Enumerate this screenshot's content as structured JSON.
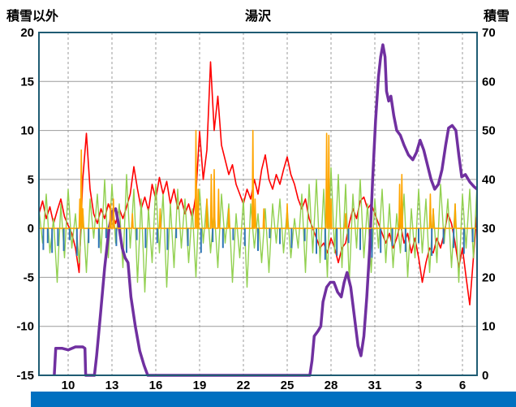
{
  "header": {
    "left_axis_title": "積雪以外",
    "title": "湯沢",
    "right_axis_title": "積雪"
  },
  "chart_data": {
    "type": "line",
    "title": "湯沢",
    "legend": "none",
    "grid": {
      "horizontal": "solid-gray",
      "vertical": "dashed-gray"
    },
    "left_axis": {
      "label": "積雪以外",
      "min": -15,
      "max": 20,
      "ticks": [
        20,
        15,
        10,
        5,
        0,
        -5,
        -10,
        -15
      ]
    },
    "right_axis": {
      "label": "積雪",
      "min": 0,
      "max": 70,
      "ticks": [
        70,
        60,
        50,
        40,
        30,
        20,
        10,
        0
      ]
    },
    "x_axis": {
      "domain": [
        0,
        30
      ],
      "tick_positions": [
        2,
        5,
        8,
        11,
        14,
        17,
        20,
        23,
        26,
        29
      ],
      "tick_labels": [
        "10",
        "13",
        "16",
        "19",
        "22",
        "25",
        "28",
        "31",
        "3",
        "6"
      ]
    },
    "colors": {
      "red_series": "#FF0000",
      "green_series": "#92D050",
      "purple_series": "#7030A0",
      "orange_series": "#FFA500",
      "blue_series": "#2E75B6",
      "border": "#1F5C73",
      "gridline": "#9B9B9B",
      "bottom_bar": "#0070C0"
    },
    "series": [
      {
        "name": "red-line",
        "axis": "left",
        "color": "#FF0000",
        "kind": "grid-line",
        "x_start": 0,
        "x_step": 0.25,
        "values": [
          1.5,
          2.8,
          1.0,
          2.2,
          0.5,
          1.8,
          3.0,
          1.2,
          0.3,
          -0.5,
          -2.0,
          -4.5,
          5.0,
          9.7,
          4.0,
          1.5,
          0.5,
          2.0,
          1.0,
          2.5,
          1.5,
          0.5,
          2.0,
          1.0,
          2.2,
          3.5,
          6.3,
          4.0,
          2.0,
          3.2,
          1.8,
          4.5,
          3.0,
          5.2,
          3.5,
          4.8,
          2.5,
          4.0,
          2.0,
          3.0,
          1.5,
          2.5,
          1.0,
          3.5,
          9.9,
          5.0,
          8.0,
          17.0,
          10.0,
          13.5,
          8.5,
          7.0,
          5.5,
          6.5,
          4.5,
          3.5,
          2.5,
          4.0,
          3.0,
          5.0,
          3.5,
          6.0,
          7.5,
          5.0,
          4.0,
          5.5,
          4.5,
          6.0,
          7.3,
          5.5,
          4.5,
          3.0,
          2.0,
          3.0,
          1.0,
          0.0,
          -1.0,
          -2.0,
          -1.5,
          -2.5,
          -1.0,
          -2.0,
          -3.5,
          -2.0,
          -1.5,
          0.5,
          2.0,
          1.0,
          2.8,
          3.2,
          2.0,
          2.5,
          1.5,
          0.5,
          -0.5,
          -1.5,
          -0.5,
          -2.0,
          -1.0,
          0.5,
          -1.5,
          -0.5,
          -2.5,
          -1.0,
          -3.0,
          -5.5,
          -3.5,
          -2.0,
          -2.5,
          -1.0,
          -2.0,
          -0.5,
          1.5,
          0.5,
          -1.5,
          -4.0,
          -2.0,
          -5.0,
          -7.8,
          -3.0,
          1.8
        ]
      },
      {
        "name": "green-line",
        "axis": "left",
        "color": "#92D050",
        "kind": "grid-line",
        "x_start": 0,
        "x_step": 0.25,
        "values": [
          2.0,
          -1.5,
          3.5,
          -2.5,
          1.0,
          -5.5,
          2.5,
          -3.0,
          4.0,
          -2.0,
          1.5,
          -3.5,
          2.0,
          -4.5,
          3.0,
          -1.0,
          3.5,
          -2.5,
          5.0,
          -3.0,
          4.5,
          -1.5,
          2.5,
          -4.0,
          5.5,
          -2.0,
          4.0,
          -5.5,
          3.0,
          -6.5,
          2.0,
          -3.5,
          4.5,
          -2.5,
          3.5,
          -6.0,
          2.5,
          -4.0,
          4.0,
          -2.0,
          3.0,
          -3.5,
          2.0,
          -5.0,
          4.0,
          -1.5,
          3.0,
          -2.5,
          2.0,
          -4.0,
          3.5,
          -1.5,
          2.5,
          -5.5,
          1.5,
          -3.0,
          3.0,
          -6.0,
          2.5,
          -2.0,
          1.5,
          -3.5,
          2.0,
          -4.5,
          2.5,
          -1.5,
          3.0,
          -2.5,
          2.0,
          -3.0,
          1.0,
          -2.0,
          3.5,
          -4.5,
          4.5,
          -2.5,
          5.0,
          -3.5,
          4.0,
          -5.0,
          6.2,
          -2.5,
          5.5,
          -4.0,
          4.5,
          -5.5,
          3.5,
          -2.0,
          5.0,
          -3.0,
          2.5,
          -4.5,
          3.0,
          -2.0,
          4.0,
          -3.5,
          2.5,
          -4.0,
          1.5,
          -2.5,
          3.5,
          -5.0,
          2.0,
          -3.0,
          4.0,
          -2.5,
          3.0,
          -4.5,
          2.0,
          -3.5,
          4.5,
          -1.5,
          3.0,
          -4.0,
          2.5,
          -5.5,
          3.5,
          -2.0,
          4.0,
          -3.0,
          4.5
        ]
      },
      {
        "name": "snow-depth-line",
        "axis": "right",
        "color": "#7030A0",
        "kind": "point-line",
        "points": [
          [
            1.05,
            0
          ],
          [
            1.15,
            5.5
          ],
          [
            1.6,
            5.5
          ],
          [
            2.0,
            5.2
          ],
          [
            2.5,
            5.8
          ],
          [
            3.0,
            5.8
          ],
          [
            3.15,
            5.5
          ],
          [
            3.2,
            0
          ],
          [
            3.8,
            0
          ],
          [
            3.95,
            4
          ],
          [
            4.2,
            12
          ],
          [
            4.5,
            22
          ],
          [
            4.8,
            30
          ],
          [
            5.05,
            33.5
          ],
          [
            5.25,
            34
          ],
          [
            5.45,
            31
          ],
          [
            5.7,
            26
          ],
          [
            5.9,
            24
          ],
          [
            6.1,
            23
          ],
          [
            6.3,
            16
          ],
          [
            6.6,
            10
          ],
          [
            6.9,
            5
          ],
          [
            7.2,
            2
          ],
          [
            7.45,
            0
          ],
          [
            18.55,
            0
          ],
          [
            18.7,
            3
          ],
          [
            18.85,
            8
          ],
          [
            19.1,
            9
          ],
          [
            19.3,
            10
          ],
          [
            19.45,
            15
          ],
          [
            19.7,
            18
          ],
          [
            19.95,
            19
          ],
          [
            20.2,
            19
          ],
          [
            20.45,
            17
          ],
          [
            20.7,
            16
          ],
          [
            20.9,
            19
          ],
          [
            21.1,
            21
          ],
          [
            21.35,
            18
          ],
          [
            21.6,
            12
          ],
          [
            21.85,
            6
          ],
          [
            22.05,
            4
          ],
          [
            22.25,
            8
          ],
          [
            22.45,
            16
          ],
          [
            22.65,
            26
          ],
          [
            22.85,
            40
          ],
          [
            23.05,
            52
          ],
          [
            23.25,
            61
          ],
          [
            23.4,
            65
          ],
          [
            23.55,
            67.5
          ],
          [
            23.7,
            65
          ],
          [
            23.8,
            58
          ],
          [
            23.95,
            56
          ],
          [
            24.1,
            57
          ],
          [
            24.3,
            53
          ],
          [
            24.5,
            50
          ],
          [
            24.75,
            49
          ],
          [
            25.0,
            47
          ],
          [
            25.3,
            45
          ],
          [
            25.6,
            44
          ],
          [
            25.85,
            45.5
          ],
          [
            26.1,
            48
          ],
          [
            26.35,
            46
          ],
          [
            26.6,
            43
          ],
          [
            26.85,
            40
          ],
          [
            27.1,
            38
          ],
          [
            27.35,
            39
          ],
          [
            27.6,
            42
          ],
          [
            27.85,
            47
          ],
          [
            28.05,
            50.5
          ],
          [
            28.3,
            51
          ],
          [
            28.55,
            50
          ],
          [
            28.75,
            45
          ],
          [
            28.95,
            40.5
          ],
          [
            29.2,
            41
          ],
          [
            29.5,
            39.5
          ],
          [
            29.8,
            38.5
          ],
          [
            30,
            38
          ]
        ]
      },
      {
        "name": "orange-spikes",
        "axis": "left",
        "color": "#FFA500",
        "kind": "spike-line",
        "baseline": 0,
        "spikes": [
          [
            2.8,
            3
          ],
          [
            2.9,
            8
          ],
          [
            3.0,
            2
          ],
          [
            4.9,
            2.5
          ],
          [
            5.1,
            3
          ],
          [
            6.4,
            1.5
          ],
          [
            8.3,
            2
          ],
          [
            10.75,
            10
          ],
          [
            10.9,
            4
          ],
          [
            11.5,
            3
          ],
          [
            11.8,
            5.5
          ],
          [
            12.0,
            6
          ],
          [
            12.3,
            4
          ],
          [
            13.0,
            2
          ],
          [
            14.65,
            10
          ],
          [
            14.8,
            3
          ],
          [
            15.4,
            2
          ],
          [
            17.0,
            2.5
          ],
          [
            19.7,
            9.7
          ],
          [
            19.85,
            9.5
          ],
          [
            20.0,
            3
          ],
          [
            21.0,
            1.5
          ],
          [
            24.7,
            4.5
          ],
          [
            24.85,
            5.5
          ],
          [
            26.8,
            3.5
          ],
          [
            27.0,
            2
          ],
          [
            28.5,
            2.5
          ]
        ]
      },
      {
        "name": "blue-bars",
        "axis": "left",
        "color": "#2E75B6",
        "kind": "bar",
        "bars": [
          [
            0.3,
            -2.2
          ],
          [
            0.6,
            -1.5
          ],
          [
            0.9,
            -2.5
          ],
          [
            1.3,
            -1.8
          ],
          [
            1.7,
            -2.3
          ],
          [
            2.1,
            -1.2
          ],
          [
            2.6,
            -2.8
          ],
          [
            3.4,
            -1.5
          ],
          [
            4.1,
            -2.0
          ],
          [
            4.6,
            -1.0
          ],
          [
            5.3,
            -1.8
          ],
          [
            6.0,
            -2.5
          ],
          [
            6.7,
            -1.2
          ],
          [
            7.3,
            -2.0
          ],
          [
            8.1,
            -1.5
          ],
          [
            8.8,
            -2.2
          ],
          [
            9.4,
            -1.0
          ],
          [
            10.2,
            -1.8
          ],
          [
            11.1,
            -2.5
          ],
          [
            11.9,
            -1.4
          ],
          [
            12.6,
            -2.0
          ],
          [
            13.3,
            -1.2
          ],
          [
            14.1,
            -1.8
          ],
          [
            15.0,
            -2.3
          ],
          [
            15.8,
            -1.0
          ],
          [
            16.5,
            -1.6
          ],
          [
            17.3,
            -2.0
          ],
          [
            18.2,
            -1.3
          ],
          [
            19.0,
            -2.6
          ],
          [
            19.6,
            -3.2
          ],
          [
            20.4,
            -2.8
          ],
          [
            21.2,
            -1.5
          ],
          [
            22.0,
            -2.2
          ],
          [
            22.8,
            -3.0
          ],
          [
            23.4,
            -2.5
          ],
          [
            24.2,
            -1.8
          ],
          [
            25.1,
            -2.4
          ],
          [
            26.0,
            -1.5
          ],
          [
            26.9,
            -2.8
          ],
          [
            27.7,
            -1.6
          ],
          [
            28.4,
            -2.0
          ],
          [
            29.1,
            -2.6
          ],
          [
            29.7,
            -1.4
          ]
        ]
      }
    ]
  }
}
